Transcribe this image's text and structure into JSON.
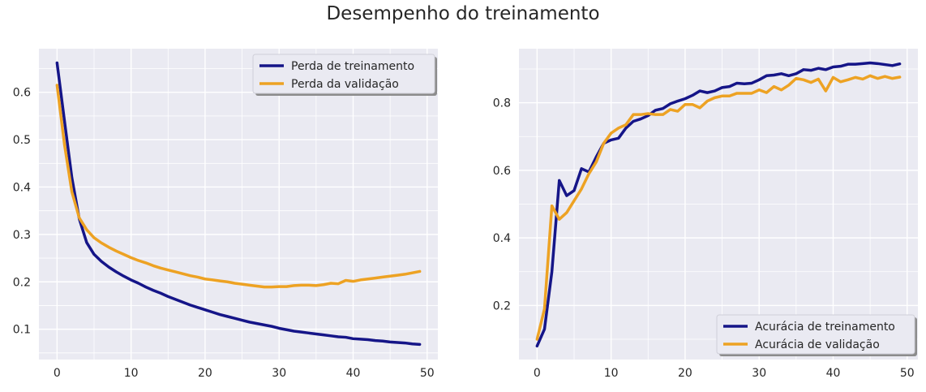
{
  "title": "Desempenho do treinamento",
  "colors": {
    "train": "#151588",
    "val": "#eda223",
    "plot_bg": "#eaeaf2",
    "grid": "#ffffff"
  },
  "chart_data": [
    {
      "type": "line",
      "title": "",
      "xlabel": "",
      "ylabel": "",
      "xlim": [
        -2.45,
        51.45
      ],
      "ylim": [
        0.036,
        0.692
      ],
      "xticks": [
        0,
        10,
        20,
        30,
        40,
        50
      ],
      "yticks": [
        0.1,
        0.2,
        0.3,
        0.4,
        0.5,
        0.6
      ],
      "ytick_labels": [
        "0.1",
        "0.2",
        "0.3",
        "0.4",
        "0.5",
        "0.6"
      ],
      "grid": true,
      "legend": "upper right",
      "series": [
        {
          "name": "Perda de treinamento",
          "color": "#151588",
          "values": [
            0.662,
            0.54,
            0.42,
            0.333,
            0.283,
            0.258,
            0.243,
            0.231,
            0.221,
            0.212,
            0.204,
            0.197,
            0.189,
            0.182,
            0.176,
            0.169,
            0.163,
            0.157,
            0.151,
            0.146,
            0.141,
            0.136,
            0.131,
            0.127,
            0.123,
            0.119,
            0.115,
            0.112,
            0.109,
            0.106,
            0.102,
            0.099,
            0.096,
            0.094,
            0.092,
            0.09,
            0.088,
            0.086,
            0.084,
            0.083,
            0.08,
            0.079,
            0.078,
            0.076,
            0.075,
            0.073,
            0.072,
            0.071,
            0.069,
            0.068
          ]
        },
        {
          "name": "Perda da validação",
          "color": "#eda223",
          "values": [
            0.615,
            0.49,
            0.39,
            0.335,
            0.31,
            0.293,
            0.282,
            0.273,
            0.265,
            0.258,
            0.251,
            0.245,
            0.24,
            0.234,
            0.229,
            0.225,
            0.221,
            0.217,
            0.213,
            0.21,
            0.206,
            0.204,
            0.202,
            0.2,
            0.197,
            0.195,
            0.193,
            0.191,
            0.189,
            0.189,
            0.19,
            0.19,
            0.192,
            0.193,
            0.193,
            0.192,
            0.194,
            0.197,
            0.196,
            0.203,
            0.201,
            0.204,
            0.206,
            0.208,
            0.21,
            0.212,
            0.214,
            0.216,
            0.219,
            0.222
          ]
        }
      ]
    },
    {
      "type": "line",
      "title": "",
      "xlabel": "",
      "ylabel": "",
      "xlim": [
        -2.45,
        51.45
      ],
      "ylim": [
        0.04,
        0.96
      ],
      "xticks": [
        0,
        10,
        20,
        30,
        40,
        50
      ],
      "yticks": [
        0.2,
        0.4,
        0.6,
        0.8
      ],
      "ytick_labels": [
        "0.2",
        "0.4",
        "0.6",
        "0.8"
      ],
      "grid": true,
      "legend": "lower right",
      "series": [
        {
          "name": "Acurácia de treinamento",
          "color": "#151588",
          "values": [
            0.08,
            0.13,
            0.3,
            0.57,
            0.525,
            0.54,
            0.605,
            0.595,
            0.64,
            0.68,
            0.69,
            0.695,
            0.725,
            0.745,
            0.752,
            0.762,
            0.778,
            0.783,
            0.797,
            0.805,
            0.812,
            0.822,
            0.835,
            0.83,
            0.835,
            0.845,
            0.848,
            0.858,
            0.856,
            0.858,
            0.868,
            0.88,
            0.882,
            0.886,
            0.88,
            0.886,
            0.898,
            0.896,
            0.902,
            0.898,
            0.906,
            0.908,
            0.914,
            0.914,
            0.916,
            0.918,
            0.916,
            0.913,
            0.91,
            0.915
          ]
        },
        {
          "name": "Acurácia de validação",
          "color": "#eda223",
          "values": [
            0.1,
            0.19,
            0.495,
            0.455,
            0.475,
            0.51,
            0.545,
            0.59,
            0.625,
            0.68,
            0.71,
            0.725,
            0.735,
            0.765,
            0.765,
            0.768,
            0.765,
            0.765,
            0.78,
            0.775,
            0.795,
            0.795,
            0.785,
            0.805,
            0.815,
            0.82,
            0.82,
            0.828,
            0.828,
            0.828,
            0.838,
            0.83,
            0.848,
            0.838,
            0.852,
            0.872,
            0.868,
            0.86,
            0.87,
            0.835,
            0.875,
            0.862,
            0.868,
            0.875,
            0.87,
            0.88,
            0.872,
            0.878,
            0.872,
            0.876
          ]
        }
      ]
    }
  ]
}
